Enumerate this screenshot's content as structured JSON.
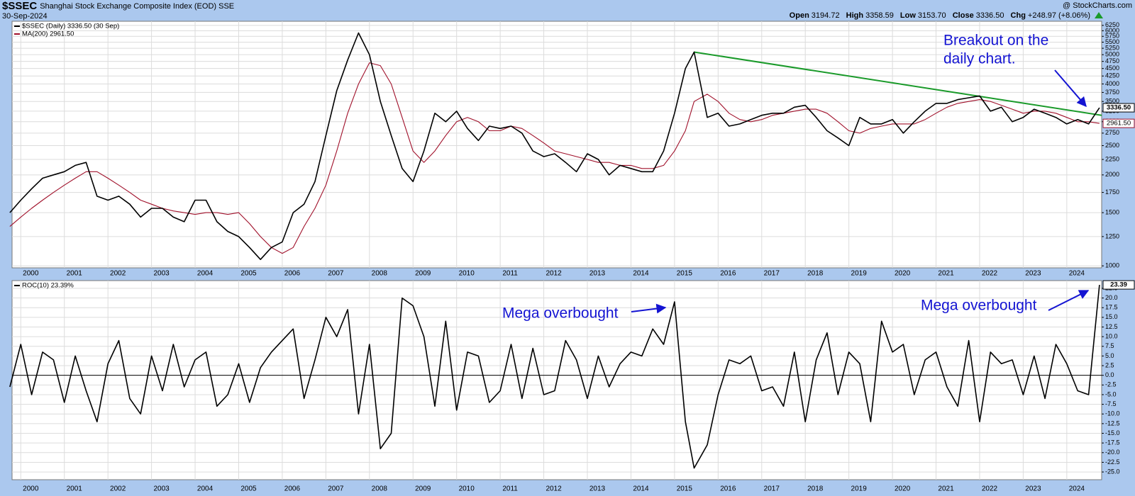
{
  "header": {
    "symbol": "$SSEC",
    "name": "Shanghai Stock Exchange Composite Index (EOD) SSE",
    "date": "30-Sep-2024",
    "source": "@ StockCharts.com",
    "quote": [
      {
        "label": "Open",
        "value": "3194.72"
      },
      {
        "label": "High",
        "value": "3358.59"
      },
      {
        "label": "Low",
        "value": "3153.70"
      },
      {
        "label": "Close",
        "value": "3336.50"
      },
      {
        "label": "Chg",
        "value": "+248.97 (+8.06%)"
      }
    ]
  },
  "chart_data": [
    {
      "type": "line",
      "log_scale": true,
      "grid": true,
      "legend": "top-left",
      "x": [
        1999.75,
        2000,
        2000.25,
        2000.5,
        2000.75,
        2001,
        2001.25,
        2001.5,
        2001.75,
        2002,
        2002.25,
        2002.5,
        2002.75,
        2003,
        2003.25,
        2003.5,
        2003.75,
        2004,
        2004.25,
        2004.5,
        2004.75,
        2005,
        2005.25,
        2005.5,
        2005.75,
        2006,
        2006.25,
        2006.5,
        2006.75,
        2007,
        2007.25,
        2007.5,
        2007.75,
        2008,
        2008.25,
        2008.5,
        2008.75,
        2009,
        2009.25,
        2009.5,
        2009.75,
        2010,
        2010.25,
        2010.5,
        2010.75,
        2011,
        2011.25,
        2011.5,
        2011.75,
        2012,
        2012.25,
        2012.5,
        2012.75,
        2013,
        2013.25,
        2013.5,
        2013.75,
        2014,
        2014.25,
        2014.5,
        2014.75,
        2015,
        2015.25,
        2015.45,
        2015.75,
        2016,
        2016.25,
        2016.5,
        2016.75,
        2017,
        2017.25,
        2017.5,
        2017.75,
        2018,
        2018.25,
        2018.5,
        2018.75,
        2019,
        2019.25,
        2019.5,
        2019.75,
        2020,
        2020.25,
        2020.5,
        2020.75,
        2021,
        2021.25,
        2021.5,
        2021.75,
        2022,
        2022.25,
        2022.5,
        2022.75,
        2023,
        2023.25,
        2023.5,
        2023.75,
        2024,
        2024.25,
        2024.5,
        2024.75
      ],
      "xlim": [
        1999.8,
        2024.8
      ],
      "xticks": [
        2000,
        2001,
        2002,
        2003,
        2004,
        2005,
        2006,
        2007,
        2008,
        2009,
        2010,
        2011,
        2012,
        2013,
        2014,
        2015,
        2016,
        2017,
        2018,
        2019,
        2020,
        2021,
        2022,
        2023,
        2024
      ],
      "ylim": [
        985,
        6450
      ],
      "yticks": [
        1000,
        1250,
        1500,
        1750,
        2000,
        2250,
        2500,
        2750,
        3000,
        3250,
        3500,
        3750,
        4000,
        4250,
        4500,
        4750,
        5000,
        5250,
        5500,
        5750,
        6000,
        6250
      ],
      "series": [
        {
          "name": "$SSEC (Daily) 3336.50 (30 Sep)",
          "color": "#000000",
          "end_label": {
            "value": 3336.5,
            "label": "3336.50"
          },
          "values": [
            1500,
            1650,
            1800,
            1950,
            2000,
            2050,
            2150,
            2200,
            1700,
            1650,
            1700,
            1600,
            1450,
            1550,
            1550,
            1450,
            1400,
            1650,
            1650,
            1400,
            1300,
            1250,
            1150,
            1050,
            1150,
            1200,
            1500,
            1600,
            1900,
            2700,
            3800,
            4800,
            5900,
            5000,
            3500,
            2700,
            2100,
            1900,
            2400,
            3200,
            3000,
            3250,
            2850,
            2600,
            2900,
            2850,
            2900,
            2750,
            2400,
            2300,
            2350,
            2200,
            2050,
            2350,
            2250,
            2000,
            2150,
            2100,
            2050,
            2050,
            2400,
            3200,
            4500,
            5100,
            3100,
            3200,
            2900,
            2950,
            3050,
            3150,
            3200,
            3200,
            3350,
            3400,
            3100,
            2800,
            2650,
            2500,
            3100,
            2950,
            2950,
            3050,
            2750,
            3000,
            3250,
            3450,
            3450,
            3550,
            3600,
            3650,
            3250,
            3350,
            3000,
            3100,
            3300,
            3200,
            3100,
            2950,
            3050,
            2950,
            3336.5
          ]
        },
        {
          "name": "MA(200) 2961.50",
          "color": "#a0102a",
          "end_label": {
            "value": 2961.5,
            "label": "2961.50"
          },
          "values": [
            1350,
            1450,
            1550,
            1650,
            1750,
            1850,
            1950,
            2050,
            2050,
            1950,
            1850,
            1750,
            1650,
            1600,
            1550,
            1520,
            1500,
            1480,
            1500,
            1500,
            1480,
            1500,
            1380,
            1250,
            1150,
            1100,
            1150,
            1350,
            1550,
            1850,
            2400,
            3200,
            4000,
            4700,
            4600,
            4000,
            3100,
            2400,
            2200,
            2400,
            2700,
            3000,
            3100,
            3000,
            2800,
            2800,
            2900,
            2850,
            2700,
            2550,
            2400,
            2350,
            2300,
            2250,
            2200,
            2200,
            2150,
            2150,
            2100,
            2100,
            2150,
            2400,
            2800,
            3500,
            3700,
            3500,
            3200,
            3050,
            3000,
            3050,
            3150,
            3200,
            3250,
            3300,
            3300,
            3200,
            3000,
            2800,
            2750,
            2850,
            2900,
            2950,
            2950,
            2950,
            3050,
            3200,
            3350,
            3450,
            3500,
            3550,
            3500,
            3400,
            3300,
            3200,
            3250,
            3250,
            3200,
            3100,
            3000,
            3000,
            2961.5
          ]
        }
      ],
      "trendline": {
        "x": [
          2015.45,
          2024.8
        ],
        "values": [
          5100,
          3150
        ],
        "color": "#1a9a2a"
      },
      "annotations": [
        {
          "lines": [
            "Breakout on the",
            "daily chart."
          ]
        }
      ]
    },
    {
      "type": "line",
      "grid": true,
      "legend": "top-left",
      "x": [
        1999.75,
        2000,
        2000.25,
        2000.5,
        2000.75,
        2001,
        2001.25,
        2001.5,
        2001.75,
        2002,
        2002.25,
        2002.5,
        2002.75,
        2003,
        2003.25,
        2003.5,
        2003.75,
        2004,
        2004.25,
        2004.5,
        2004.75,
        2005,
        2005.25,
        2005.5,
        2005.75,
        2006,
        2006.25,
        2006.5,
        2006.75,
        2007,
        2007.25,
        2007.5,
        2007.75,
        2008,
        2008.25,
        2008.5,
        2008.75,
        2009,
        2009.25,
        2009.5,
        2009.75,
        2010,
        2010.25,
        2010.5,
        2010.75,
        2011,
        2011.25,
        2011.5,
        2011.75,
        2012,
        2012.25,
        2012.5,
        2012.75,
        2013,
        2013.25,
        2013.5,
        2013.75,
        2014,
        2014.25,
        2014.5,
        2014.75,
        2015,
        2015.25,
        2015.45,
        2015.75,
        2016,
        2016.25,
        2016.5,
        2016.75,
        2017,
        2017.25,
        2017.5,
        2017.75,
        2018,
        2018.25,
        2018.5,
        2018.75,
        2019,
        2019.25,
        2019.5,
        2019.75,
        2020,
        2020.25,
        2020.5,
        2020.75,
        2021,
        2021.25,
        2021.5,
        2021.75,
        2022,
        2022.25,
        2022.5,
        2022.75,
        2023,
        2023.25,
        2023.5,
        2023.75,
        2024,
        2024.25,
        2024.5,
        2024.75
      ],
      "xlim": [
        1999.8,
        2024.8
      ],
      "xticks": [
        2000,
        2001,
        2002,
        2003,
        2004,
        2005,
        2006,
        2007,
        2008,
        2009,
        2010,
        2011,
        2012,
        2013,
        2014,
        2015,
        2016,
        2017,
        2018,
        2019,
        2020,
        2021,
        2022,
        2023,
        2024
      ],
      "ylim": [
        -27,
        24.5
      ],
      "yticks": [
        {
          "value": -25,
          "label": "-25.0"
        },
        -22.5,
        {
          "value": -20,
          "label": "-20.0"
        },
        -17.5,
        {
          "value": -15,
          "label": "-15.0"
        },
        -12.5,
        {
          "value": -10,
          "label": "-10.0"
        },
        -7.5,
        {
          "value": -5,
          "label": "-5.0"
        },
        -2.5,
        {
          "value": 0,
          "label": "0.0"
        },
        2.5,
        {
          "value": 5,
          "label": "5.0"
        },
        7.5,
        {
          "value": 10,
          "label": "10.0"
        },
        12.5,
        {
          "value": 15,
          "label": "15.0"
        },
        17.5,
        {
          "value": 20,
          "label": "20.0"
        },
        22.5
      ],
      "series": [
        {
          "name": "ROC(10) 23.39%",
          "color": "#000000",
          "end_label": {
            "value": 23.39,
            "label": "23.39"
          },
          "values": [
            -3,
            8,
            -5,
            6,
            4,
            -7,
            5,
            -4,
            -12,
            3,
            9,
            -6,
            -10,
            5,
            -4,
            8,
            -3,
            4,
            6,
            -8,
            -5,
            3,
            -7,
            2,
            6,
            9,
            12,
            -6,
            4,
            15,
            10,
            17,
            -10,
            8,
            -19,
            -15,
            20,
            18,
            10,
            -8,
            14,
            -9,
            6,
            5,
            -7,
            -4,
            8,
            -6,
            7,
            -5,
            -4,
            9,
            4,
            -6,
            5,
            -3,
            3,
            6,
            5,
            12,
            8,
            19,
            -12,
            -24,
            -18,
            -5,
            4,
            3,
            5,
            -4,
            -3,
            -8,
            6,
            -12,
            4,
            11,
            -5,
            6,
            3,
            -12,
            14,
            6,
            8,
            -5,
            4,
            6,
            -3,
            -8,
            9,
            -12,
            6,
            3,
            4,
            -5,
            5,
            -6,
            8,
            3,
            -4,
            -5,
            23.39
          ]
        }
      ],
      "annotations": [
        {
          "lines": [
            "Mega overbought"
          ]
        },
        {
          "lines": [
            "Mega overbought"
          ]
        }
      ]
    }
  ]
}
